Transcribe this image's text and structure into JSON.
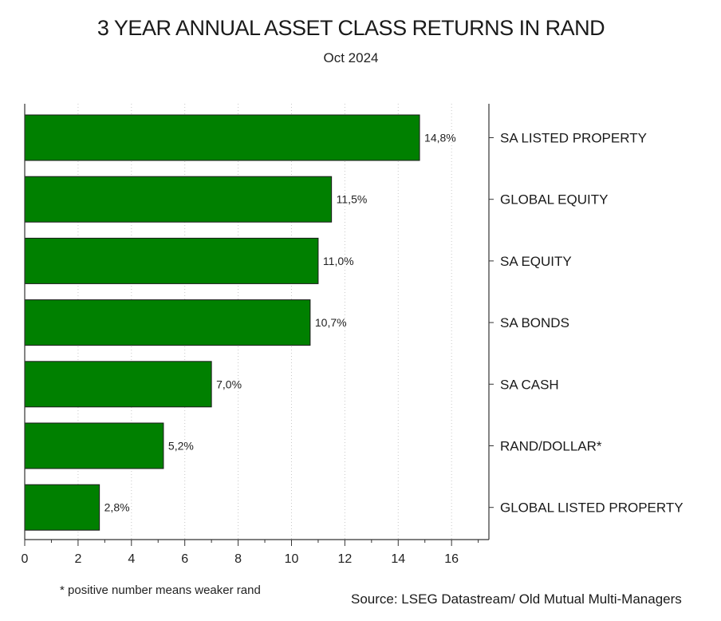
{
  "chart_data": {
    "type": "bar",
    "orientation": "horizontal",
    "title": "3 YEAR ANNUAL ASSET CLASS RETURNS IN RAND",
    "subtitle": "Oct 2024",
    "categories": [
      "SA LISTED PROPERTY",
      "GLOBAL EQUITY",
      "SA EQUITY",
      "SA BONDS",
      "SA CASH",
      "RAND/DOLLAR*",
      "GLOBAL LISTED PROPERTY"
    ],
    "values": [
      14.8,
      11.5,
      11.0,
      10.7,
      7.0,
      5.2,
      2.8
    ],
    "value_labels": [
      "14,8%",
      "11,5%",
      "11,0%",
      "10,7%",
      "7,0%",
      "5,2%",
      "2,8%"
    ],
    "x_ticks": [
      "0",
      "2",
      "4",
      "6",
      "8",
      "10",
      "12",
      "14",
      "16"
    ],
    "xlim": [
      0,
      17.4
    ],
    "bar_color": "#008000",
    "grid": "vertical dotted",
    "legend": "none",
    "footnote": "* positive number means weaker rand",
    "source": "Source: LSEG Datastream/ Old Mutual Multi-Managers"
  }
}
